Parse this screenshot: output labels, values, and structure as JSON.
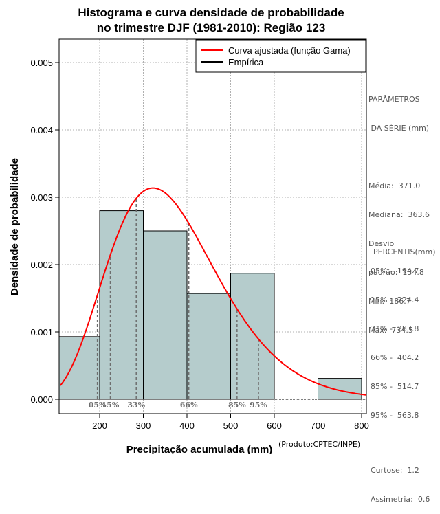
{
  "chart_data": {
    "type": "bar",
    "title_line1": "Histograma e curva densidade de probabilidade",
    "title_line2": "no trimestre DJF (1981-2010): Região 123",
    "xlabel": "Precipitação acumulada (mm)",
    "ylabel": "Densidade de probabilidade",
    "xlim": [
      110,
      810
    ],
    "ylim": [
      0,
      0.0053
    ],
    "x_ticks": [
      "200",
      "300",
      "400",
      "500",
      "600",
      "700",
      "800"
    ],
    "y_ticks": [
      "0.000",
      "0.001",
      "0.002",
      "0.003",
      "0.004",
      "0.005"
    ],
    "bins": [
      {
        "from": 100,
        "to": 200,
        "density": 0.00093
      },
      {
        "from": 200,
        "to": 300,
        "density": 0.0028
      },
      {
        "from": 300,
        "to": 400,
        "density": 0.0025
      },
      {
        "from": 400,
        "to": 500,
        "density": 0.00157
      },
      {
        "from": 500,
        "to": 600,
        "density": 0.00187
      },
      {
        "from": 600,
        "to": 700,
        "density": 0.0
      },
      {
        "from": 700,
        "to": 800,
        "density": 0.00031
      }
    ],
    "gamma_fit": {
      "mean": 371.0,
      "sd": 134.8
    },
    "legend": [
      {
        "label": "Curva ajustada (função Gama)",
        "color": "#ff0000"
      },
      {
        "label": "Empírica",
        "color": "#000000"
      }
    ],
    "percentile_markers": [
      {
        "label": "05%",
        "value": 194.7
      },
      {
        "label": "15%",
        "value": 224.4
      },
      {
        "label": "33%",
        "value": 283.8
      },
      {
        "label": "66%",
        "value": 404.2
      },
      {
        "label": "85%",
        "value": 514.7
      },
      {
        "label": "95%",
        "value": 563.8
      }
    ],
    "colors": {
      "bar_fill": "#b5cccc",
      "curve": "#ff0000",
      "grid": "#b0b0b0",
      "marker": "#6e6e6e"
    }
  },
  "side_panel": {
    "params_title_1": "PARÂMETROS",
    "params_title_2": " DA SÉRIE (mm)",
    "media": "Média:  371.0",
    "mediana": "Mediana:  363.6",
    "desvio_1": "Desvio",
    "desvio_2": "padrão:  134.8",
    "min": "Mín:  186.7",
    "max": "Máx:  734.5",
    "percentis_title": "PERCENTIS(mm)",
    "p05": "05% -  194.7",
    "p15": "15% -  224.4",
    "p33": "33% -  283.8",
    "p66": "66% -  404.2",
    "p85": "85% -  514.7",
    "p95": "95% -  563.8",
    "curtose": "Curtose:  1.2",
    "assimetria": "Assimetria:  0.6"
  },
  "credit": "(Produto:CPTEC/INPE)"
}
